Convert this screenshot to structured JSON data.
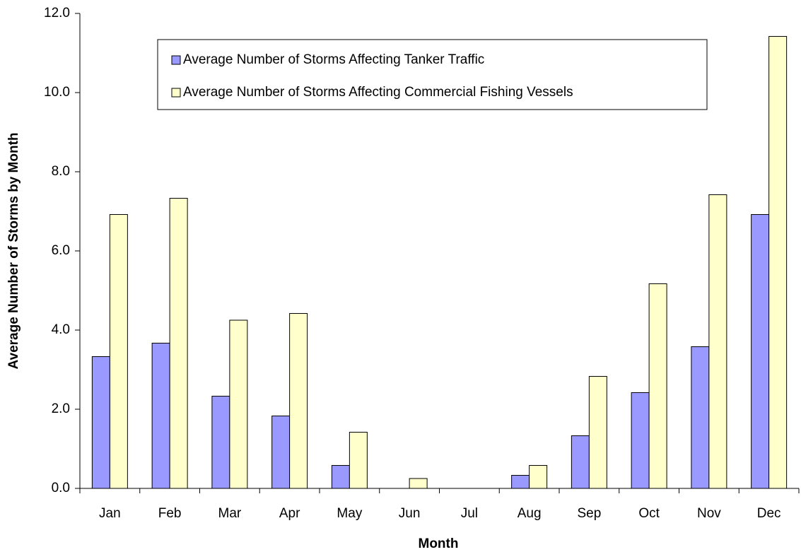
{
  "chart_data": {
    "type": "bar",
    "x_label": "Month",
    "y_label": "Average Number of Storms by Month",
    "categories": [
      "Jan",
      "Feb",
      "Mar",
      "Apr",
      "May",
      "Jun",
      "Jul",
      "Aug",
      "Sep",
      "Oct",
      "Nov",
      "Dec"
    ],
    "series": [
      {
        "name": "Average Number of Storms Affecting Tanker Traffic",
        "color": "#9999ff",
        "values": [
          3.33,
          3.67,
          2.33,
          1.83,
          0.58,
          0,
          0,
          0.33,
          1.33,
          2.42,
          3.58,
          6.92
        ]
      },
      {
        "name": "Average Number of Storms Affecting Commercial Fishing Vessels",
        "color": "#ffffcc",
        "values": [
          6.92,
          7.33,
          4.25,
          4.42,
          1.42,
          0.25,
          0,
          0.58,
          2.83,
          5.17,
          7.42,
          11.42
        ]
      }
    ],
    "ylim": [
      0,
      12
    ],
    "yticks": [
      {
        "value": 0,
        "label": "0.0"
      },
      {
        "value": 2,
        "label": "2.0"
      },
      {
        "value": 4,
        "label": "4.0"
      },
      {
        "value": 6,
        "label": "6.0"
      },
      {
        "value": 8,
        "label": "8.0"
      },
      {
        "value": 10,
        "label": "10.0"
      },
      {
        "value": 12,
        "label": "12.0"
      }
    ],
    "grid": false,
    "legend": "top"
  }
}
